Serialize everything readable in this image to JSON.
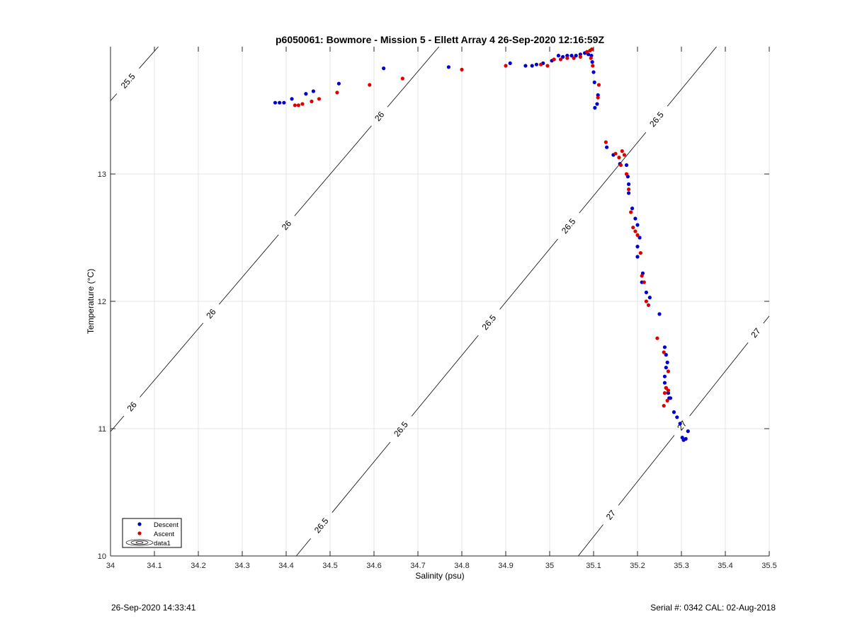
{
  "chart_data": {
    "type": "scatter",
    "title": "p6050061: Bowmore - Mission 5 - Ellett Array 4 26-Sep-2020 12:16:59Z",
    "xlabel": "Salinity (psu)",
    "ylabel": "Temperature (°C)",
    "xlim": [
      34,
      35.5
    ],
    "ylim": [
      10,
      14
    ],
    "x_ticks": [
      "34",
      "34.1",
      "34.2",
      "34.3",
      "34.4",
      "34.5",
      "34.6",
      "34.7",
      "34.8",
      "34.9",
      "35",
      "35.1",
      "35.2",
      "35.3",
      "35.4",
      "35.5"
    ],
    "y_ticks": [
      "10",
      "11",
      "12",
      "13"
    ],
    "grid": true,
    "legend_position": "bottom-left",
    "legend": [
      "Descent",
      "Ascent",
      "data1"
    ],
    "colors": {
      "descent": "#0000cc",
      "ascent": "#dd0000",
      "contour": "#000000",
      "grid": "#e6e6e6"
    },
    "series": [
      {
        "name": "Descent",
        "points": [
          [
            34.375,
            13.56
          ],
          [
            34.385,
            13.56
          ],
          [
            34.395,
            13.56
          ],
          [
            34.413,
            13.59
          ],
          [
            34.445,
            13.63
          ],
          [
            34.462,
            13.65
          ],
          [
            34.52,
            13.71
          ],
          [
            34.622,
            13.83
          ],
          [
            34.77,
            13.84
          ],
          [
            34.91,
            13.87
          ],
          [
            34.945,
            13.85
          ],
          [
            34.96,
            13.85
          ],
          [
            34.97,
            13.86
          ],
          [
            34.985,
            13.87
          ],
          [
            35.005,
            13.89
          ],
          [
            35.02,
            13.93
          ],
          [
            35.03,
            13.92
          ],
          [
            35.04,
            13.93
          ],
          [
            35.05,
            13.93
          ],
          [
            35.06,
            13.93
          ],
          [
            35.07,
            13.94
          ],
          [
            35.08,
            13.95
          ],
          [
            35.088,
            13.94
          ],
          [
            35.095,
            13.93
          ],
          [
            35.097,
            13.88
          ],
          [
            35.1,
            13.8
          ],
          [
            35.102,
            13.72
          ],
          [
            35.11,
            13.62
          ],
          [
            35.108,
            13.55
          ],
          [
            35.103,
            13.52
          ],
          [
            35.13,
            13.21
          ],
          [
            35.145,
            13.15
          ],
          [
            35.16,
            13.08
          ],
          [
            35.175,
            13.07
          ],
          [
            35.178,
            12.98
          ],
          [
            35.18,
            12.92
          ],
          [
            35.18,
            12.85
          ],
          [
            35.188,
            12.73
          ],
          [
            35.195,
            12.65
          ],
          [
            35.2,
            12.6
          ],
          [
            35.205,
            12.5
          ],
          [
            35.2,
            12.43
          ],
          [
            35.2,
            12.35
          ],
          [
            35.212,
            12.22
          ],
          [
            35.21,
            12.15
          ],
          [
            35.22,
            12.07
          ],
          [
            35.228,
            12.03
          ],
          [
            35.25,
            11.9
          ],
          [
            35.262,
            11.64
          ],
          [
            35.265,
            11.58
          ],
          [
            35.268,
            11.52
          ],
          [
            35.265,
            11.48
          ],
          [
            35.262,
            11.41
          ],
          [
            35.262,
            11.36
          ],
          [
            35.265,
            11.32
          ],
          [
            35.27,
            11.28
          ],
          [
            35.272,
            11.24
          ],
          [
            35.275,
            11.24
          ],
          [
            35.283,
            11.13
          ],
          [
            35.29,
            11.09
          ],
          [
            35.297,
            11.04
          ],
          [
            35.302,
            10.93
          ],
          [
            35.305,
            10.91
          ],
          [
            35.31,
            10.92
          ],
          [
            35.315,
            10.98
          ]
        ]
      },
      {
        "name": "Ascent",
        "points": [
          [
            34.42,
            13.54
          ],
          [
            34.428,
            13.54
          ],
          [
            34.437,
            13.55
          ],
          [
            34.458,
            13.57
          ],
          [
            34.475,
            13.59
          ],
          [
            34.516,
            13.64
          ],
          [
            34.59,
            13.7
          ],
          [
            34.665,
            13.75
          ],
          [
            34.8,
            13.82
          ],
          [
            34.9,
            13.85
          ],
          [
            34.98,
            13.86
          ],
          [
            34.995,
            13.85
          ],
          [
            35.01,
            13.9
          ],
          [
            35.025,
            13.9
          ],
          [
            35.04,
            13.91
          ],
          [
            35.055,
            13.91
          ],
          [
            35.07,
            13.92
          ],
          [
            35.085,
            13.96
          ],
          [
            35.092,
            13.97
          ],
          [
            35.096,
            13.98
          ],
          [
            35.094,
            13.91
          ],
          [
            35.098,
            13.85
          ],
          [
            35.112,
            13.7
          ],
          [
            35.11,
            13.6
          ],
          [
            35.128,
            13.25
          ],
          [
            35.15,
            13.16
          ],
          [
            35.158,
            13.13
          ],
          [
            35.162,
            13.07
          ],
          [
            35.165,
            13.18
          ],
          [
            35.17,
            13.15
          ],
          [
            35.175,
            13.0
          ],
          [
            35.18,
            12.88
          ],
          [
            35.185,
            12.7
          ],
          [
            35.19,
            12.58
          ],
          [
            35.195,
            12.55
          ],
          [
            35.2,
            12.52
          ],
          [
            35.207,
            12.38
          ],
          [
            35.21,
            12.2
          ],
          [
            35.215,
            12.15
          ],
          [
            35.22,
            12.0
          ],
          [
            35.225,
            11.97
          ],
          [
            35.245,
            11.71
          ],
          [
            35.26,
            11.6
          ],
          [
            35.27,
            11.45
          ],
          [
            35.265,
            11.32
          ],
          [
            35.27,
            11.3
          ],
          [
            35.262,
            11.28
          ],
          [
            35.268,
            11.22
          ],
          [
            35.26,
            11.18
          ]
        ]
      }
    ],
    "contours": [
      {
        "label": "25.5",
        "p1": [
          34.0,
          13.575
        ],
        "p2": [
          34.109,
          14.0
        ],
        "labels_at": [
          [
            34.04,
            13.73
          ]
        ]
      },
      {
        "label": "26",
        "p1": [
          34.0,
          10.977
        ],
        "p2": [
          34.748,
          14.0
        ],
        "labels_at": [
          [
            34.05,
            11.17
          ],
          [
            34.23,
            11.9
          ],
          [
            34.4,
            12.6
          ],
          [
            34.61,
            13.46
          ]
        ]
      },
      {
        "label": "26.5",
        "p1": [
          34.423,
          10.0
        ],
        "p2": [
          35.38,
          14.0
        ],
        "labels_at": [
          [
            34.48,
            10.24
          ],
          [
            34.66,
            11.0
          ],
          [
            34.86,
            11.84
          ],
          [
            35.04,
            12.6
          ],
          [
            35.24,
            13.44
          ]
        ]
      },
      {
        "label": "27",
        "p1": [
          35.065,
          10.0
        ],
        "p2": [
          35.5,
          11.885
        ],
        "labels_at": [
          [
            35.14,
            10.32
          ],
          [
            35.31,
            11.0
          ],
          [
            35.47,
            11.75
          ]
        ]
      }
    ]
  },
  "footer": {
    "left": "26-Sep-2020 14:33:41",
    "right": "Serial #: 0342  CAL: 02-Aug-2018"
  }
}
